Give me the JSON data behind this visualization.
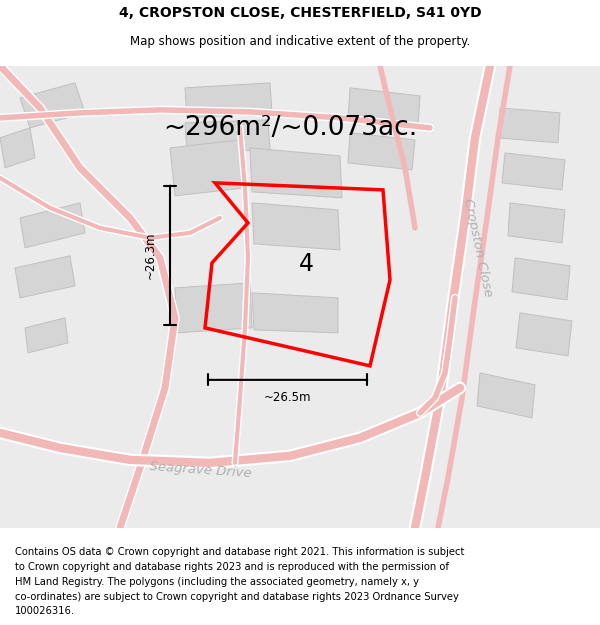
{
  "title": "4, CROPSTON CLOSE, CHESTERFIELD, S41 0YD",
  "subtitle": "Map shows position and indicative extent of the property.",
  "area_text": "~296m²/~0.073ac.",
  "label_4": "4",
  "dim_width": "~26.5m",
  "dim_height": "~26.3m",
  "footer_lines": [
    "Contains OS data © Crown copyright and database right 2021. This information is subject",
    "to Crown copyright and database rights 2023 and is reproduced with the permission of",
    "HM Land Registry. The polygons (including the associated geometry, namely x, y",
    "co-ordinates) are subject to Crown copyright and database rights 2023 Ordnance Survey",
    "100026316."
  ],
  "bg_color": "#eeeeee",
  "map_bg": "#e8e8e8",
  "road_color": "#f2b8b8",
  "road_outline": "#f2b8b8",
  "building_color": "#d5d5d5",
  "building_edge": "#c0c0c0",
  "plot_color": "#ff0000",
  "title_fontsize": 10,
  "subtitle_fontsize": 8.5,
  "area_fontsize": 19,
  "label_fontsize": 17,
  "footer_fontsize": 7.2,
  "dim_fontsize": 8.5,
  "road_label_color": "#b0b0b0",
  "road_label_fontsize": 9.5
}
